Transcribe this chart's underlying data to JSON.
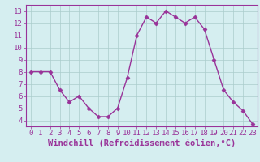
{
  "x": [
    0,
    1,
    2,
    3,
    4,
    5,
    6,
    7,
    8,
    9,
    10,
    11,
    12,
    13,
    14,
    15,
    16,
    17,
    18,
    19,
    20,
    21,
    22,
    23
  ],
  "y": [
    8.0,
    8.0,
    8.0,
    6.5,
    5.5,
    6.0,
    5.0,
    4.3,
    4.3,
    5.0,
    7.5,
    11.0,
    12.5,
    12.0,
    13.0,
    12.5,
    12.0,
    12.5,
    11.5,
    9.0,
    6.5,
    5.5,
    4.8,
    3.7
  ],
  "line_color": "#993399",
  "marker": "D",
  "marker_size": 2.5,
  "linewidth": 1.0,
  "background_color": "#d5eef0",
  "grid_color": "#aacccc",
  "axis_color": "#993399",
  "xlabel": "Windchill (Refroidissement éolien,°C)",
  "xlabel_fontsize": 7.5,
  "tick_fontsize": 6.5,
  "ylim": [
    3.5,
    13.5
  ],
  "xlim": [
    -0.5,
    23.5
  ],
  "yticks": [
    4,
    5,
    6,
    7,
    8,
    9,
    10,
    11,
    12,
    13
  ],
  "xticks": [
    0,
    1,
    2,
    3,
    4,
    5,
    6,
    7,
    8,
    9,
    10,
    11,
    12,
    13,
    14,
    15,
    16,
    17,
    18,
    19,
    20,
    21,
    22,
    23
  ]
}
